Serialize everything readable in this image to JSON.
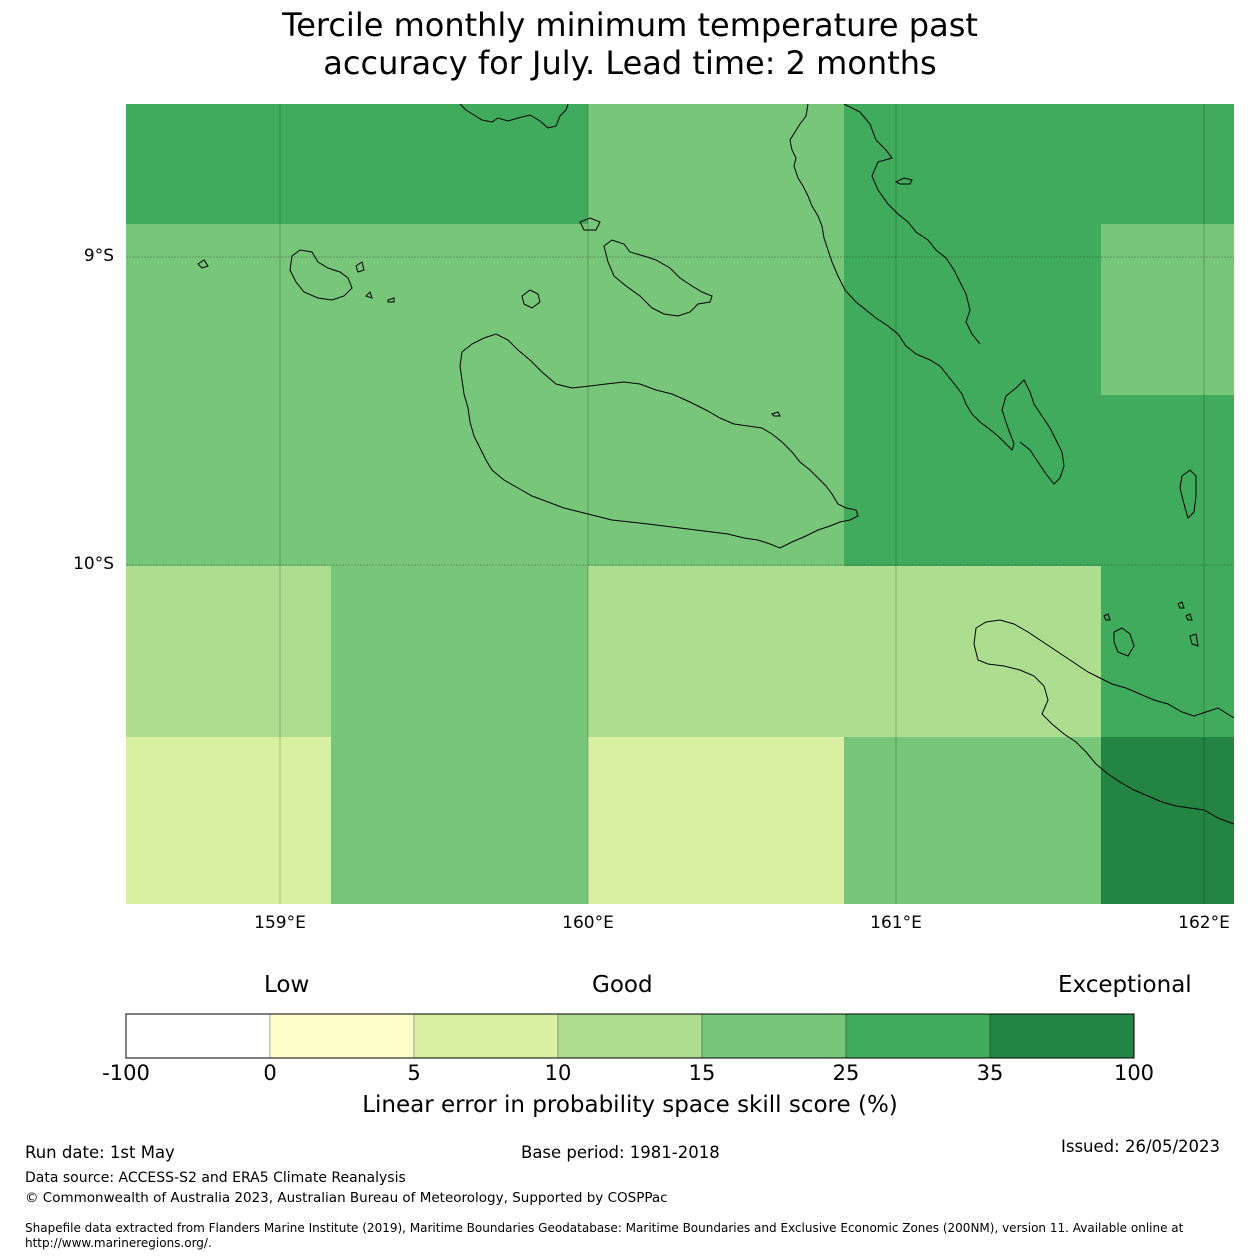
{
  "title_line1": "Tercile monthly minimum temperature past",
  "title_line2": "accuracy for July. Lead time: 2 months",
  "lat_labels": [
    "9°S",
    "10°S"
  ],
  "lon_labels": [
    "159°E",
    "160°E",
    "161°E",
    "162°E"
  ],
  "legend": {
    "category_low": "Low",
    "category_good": "Good",
    "category_exceptional": "Exceptional",
    "ticks": [
      "-100",
      "0",
      "5",
      "10",
      "15",
      "25",
      "35",
      "100"
    ],
    "colors": [
      "#ffffff",
      "#ffffcc",
      "#d9f0a3",
      "#addd8e",
      "#78c679",
      "#41ab5d",
      "#238443"
    ],
    "title": "Linear error in probability space skill score (%)"
  },
  "grid_colors": {
    "c15_25": "#78c679",
    "c25_35": "#41ab5d",
    "c10_15": "#addd8e",
    "c5_10": "#d9f0a3",
    "c35_100": "#238443"
  },
  "footer": {
    "run_date": "Run date: 1st May",
    "base_period": "Base period: 1981-2018",
    "issued": "Issued: 26/05/2023",
    "data_source": "Data source: ACCESS-S2 and ERA5 Climate Reanalysis",
    "copyright": "© Commonwealth of Australia 2023, Australian Bureau of Meteorology, Supported by COSPPac",
    "shapefile_1": "Shapefile data extracted from Flanders Marine Institute (2019), Maritime Boundaries Geodatabase: Maritime Boundaries and Exclusive Economic Zones (200NM), version 11. Available online at",
    "shapefile_2": "http://www.marineregions.org/."
  }
}
